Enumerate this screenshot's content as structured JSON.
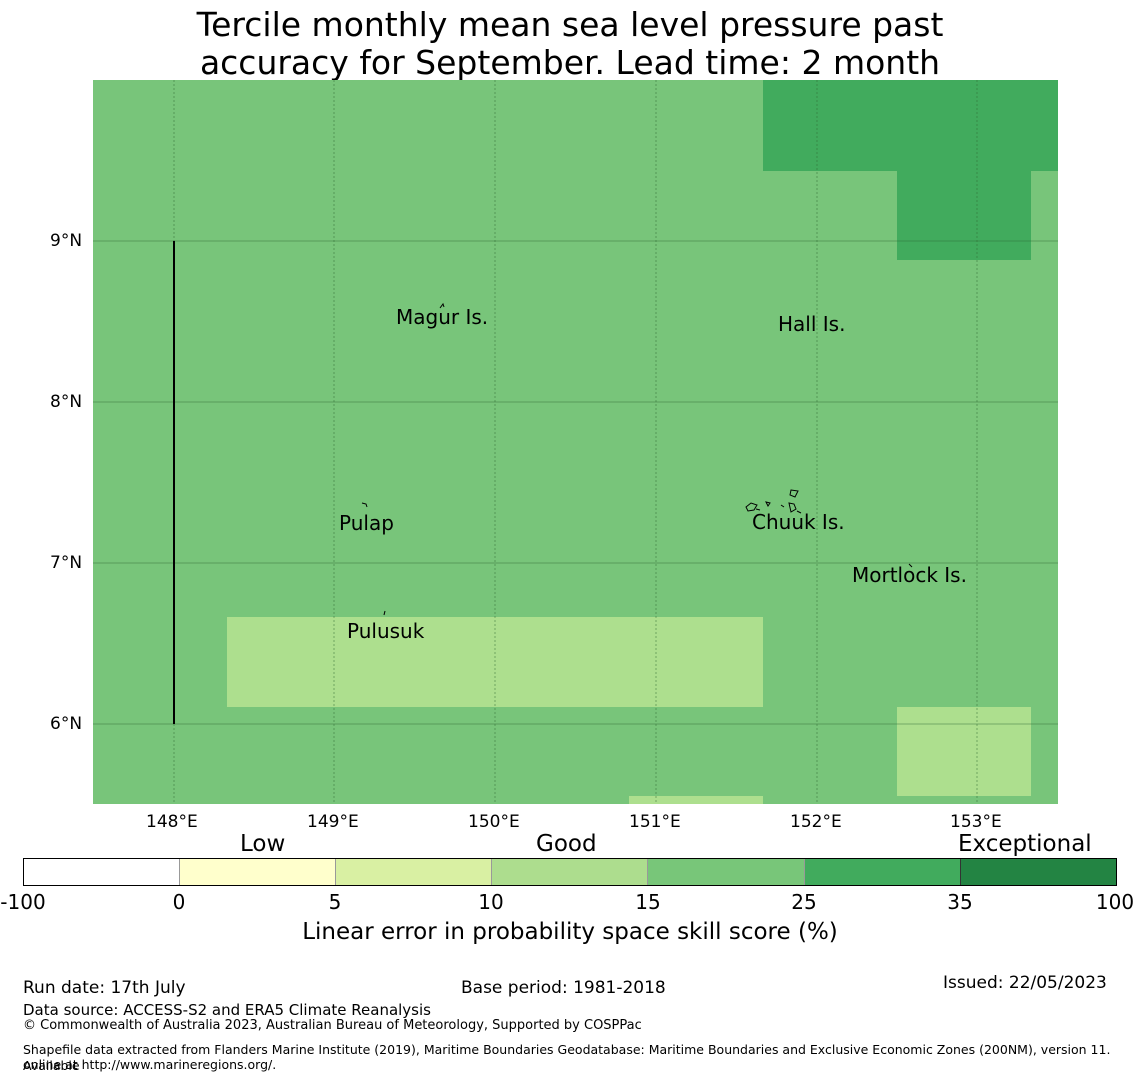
{
  "title": {
    "line1": "Tercile monthly mean sea level pressure past",
    "line2": "accuracy for September. Lead time: 2 month"
  },
  "map": {
    "lon_labels": [
      "148°E",
      "149°E",
      "150°E",
      "151°E",
      "152°E",
      "153°E"
    ],
    "lat_labels": [
      "9°N",
      "8°N",
      "7°N",
      "6°N"
    ],
    "places": [
      "Magur Is.",
      "Hall Is.",
      "Pulap",
      "Chuuk Is.",
      "Mortlock Is.",
      "Pulusuk"
    ],
    "colors": {
      "category_15_25": "#78c57a",
      "category_25_35": "#41ab5d",
      "category_10_15": "#addf8e"
    }
  },
  "colorbar": {
    "category_labels": [
      "Low",
      "Good",
      "Exceptional"
    ],
    "tick_labels": [
      "-100",
      "0",
      "5",
      "10",
      "15",
      "25",
      "35",
      "100"
    ],
    "colors": [
      "#ffffff",
      "#ffffcc",
      "#d9f0a3",
      "#addd8e",
      "#78c679",
      "#41ab5d",
      "#238443"
    ],
    "title": "Linear error in probability space skill score (%)"
  },
  "footer": {
    "run_date": "Run date: 17th July",
    "base_period": "Base period: 1981-2018",
    "issued": "Issued: 22/05/2023",
    "data_source": "Data source: ACCESS-S2 and ERA5 Climate Reanalysis",
    "copyright": "© Commonwealth of Australia 2023, Australian Bureau of Meteorology, Supported by COSPPac",
    "shapefile_1": "Shapefile data extracted from Flanders Marine Institute (2019), Maritime Boundaries Geodatabase: Maritime Boundaries and Exclusive Economic Zones (200NM), version 11. Available",
    "shapefile_2": "online at http://www.marineregions.org/."
  }
}
